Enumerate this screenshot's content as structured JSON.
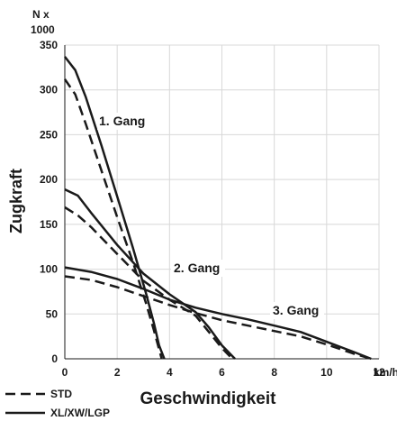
{
  "chart_data": {
    "type": "line",
    "title": "",
    "xlabel": "Geschwindigkeit",
    "ylabel": "Zugkraft",
    "y_unit_top": "N x",
    "y_unit_bottom": "1000",
    "x_unit": "km/h",
    "xlim": [
      0,
      12
    ],
    "ylim": [
      0,
      350
    ],
    "x_ticks": [
      "0",
      "2",
      "4",
      "6",
      "8",
      "10",
      "12"
    ],
    "y_ticks": [
      "0",
      "50",
      "100",
      "150",
      "200",
      "250",
      "300",
      "350"
    ],
    "grid": true,
    "legend": [
      {
        "label": "STD",
        "style": "dashed"
      },
      {
        "label": "XL/XW/LGP",
        "style": "solid"
      }
    ],
    "annotations": [
      "1. Gang",
      "2. Gang",
      "3. Gang"
    ],
    "colors": {
      "line": "#1a1a1a",
      "grid": "#d8d8d8",
      "tick_bg": "#ffffff"
    },
    "series": [
      {
        "style": "solid",
        "points": [
          [
            0,
            337
          ],
          [
            0.4,
            322
          ],
          [
            0.8,
            292
          ],
          [
            1.4,
            238
          ],
          [
            2.0,
            181
          ],
          [
            2.6,
            124
          ],
          [
            3.1,
            73
          ],
          [
            3.4,
            40
          ],
          [
            3.6,
            15
          ],
          [
            3.8,
            0
          ]
        ]
      },
      {
        "style": "dashed",
        "points": [
          [
            0,
            312
          ],
          [
            0.4,
            295
          ],
          [
            0.8,
            262
          ],
          [
            1.4,
            210
          ],
          [
            2.0,
            158
          ],
          [
            2.6,
            108
          ],
          [
            3.1,
            62
          ],
          [
            3.4,
            32
          ],
          [
            3.7,
            0
          ]
        ]
      },
      {
        "style": "solid",
        "points": [
          [
            0,
            189
          ],
          [
            0.5,
            182
          ],
          [
            1.0,
            163
          ],
          [
            2.0,
            127
          ],
          [
            3.0,
            95
          ],
          [
            4.0,
            72
          ],
          [
            5.0,
            52
          ],
          [
            5.5,
            35
          ],
          [
            6.0,
            15
          ],
          [
            6.5,
            0
          ]
        ]
      },
      {
        "style": "dashed",
        "points": [
          [
            0,
            169
          ],
          [
            0.5,
            160
          ],
          [
            1.0,
            147
          ],
          [
            2.0,
            117
          ],
          [
            3.0,
            87
          ],
          [
            4.0,
            66
          ],
          [
            5.0,
            48
          ],
          [
            5.5,
            30
          ],
          [
            6.0,
            12
          ],
          [
            6.4,
            0
          ]
        ]
      },
      {
        "style": "solid",
        "points": [
          [
            0,
            102
          ],
          [
            1,
            97
          ],
          [
            2,
            89
          ],
          [
            3,
            78
          ],
          [
            4,
            66
          ],
          [
            5,
            57
          ],
          [
            6,
            50
          ],
          [
            7,
            44
          ],
          [
            8,
            37
          ],
          [
            9,
            30
          ],
          [
            10,
            19
          ],
          [
            11,
            8
          ],
          [
            11.7,
            0
          ]
        ]
      },
      {
        "style": "dashed",
        "points": [
          [
            0,
            92
          ],
          [
            1,
            88
          ],
          [
            2,
            80
          ],
          [
            3,
            70
          ],
          [
            4,
            60
          ],
          [
            5,
            51
          ],
          [
            6,
            43
          ],
          [
            7,
            37
          ],
          [
            8,
            31
          ],
          [
            9,
            25
          ],
          [
            10,
            16
          ],
          [
            11,
            6
          ],
          [
            11.7,
            0
          ]
        ]
      }
    ]
  }
}
